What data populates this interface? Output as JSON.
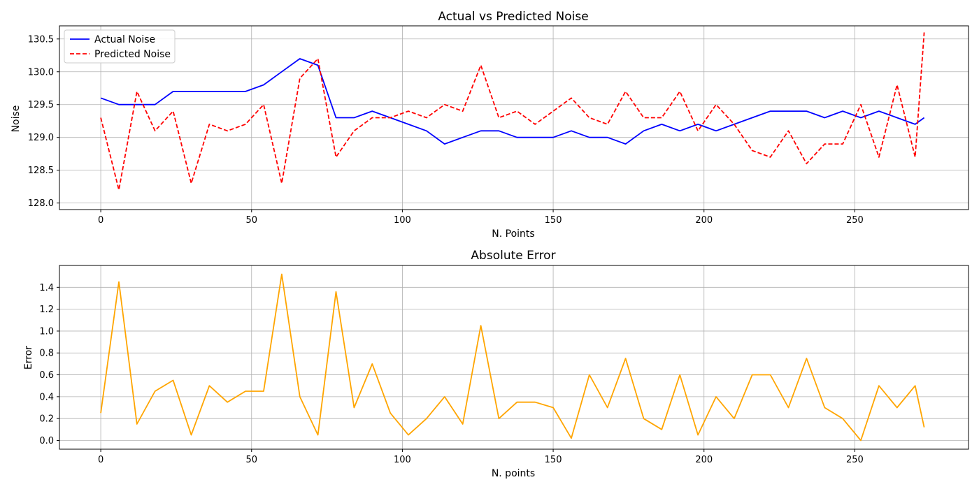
{
  "chart_data": [
    {
      "type": "line",
      "title": "Actual vs Predicted Noise",
      "xlabel": "N. Points",
      "ylabel": "Noise",
      "xlim": [
        -13.7,
        287.7
      ],
      "ylim": [
        127.9,
        130.7
      ],
      "xticks": [
        0,
        50,
        100,
        150,
        200,
        250
      ],
      "yticks": [
        128.0,
        128.5,
        129.0,
        129.5,
        130.0,
        130.5
      ],
      "xtick_labels": [
        "0",
        "50",
        "100",
        "150",
        "200",
        "250"
      ],
      "ytick_labels": [
        "128.0",
        "128.5",
        "129.0",
        "129.5",
        "130.0",
        "130.5"
      ],
      "grid": true,
      "legend_position": "top-left",
      "x": [
        0,
        6,
        12,
        18,
        24,
        30,
        36,
        42,
        48,
        54,
        60,
        66,
        72,
        78,
        84,
        90,
        96,
        102,
        108,
        114,
        120,
        126,
        132,
        138,
        144,
        150,
        156,
        162,
        168,
        174,
        180,
        186,
        192,
        198,
        204,
        210,
        216,
        222,
        228,
        234,
        240,
        246,
        252,
        258,
        264,
        270,
        273
      ],
      "series": [
        {
          "name": "Actual Noise",
          "color": "#0000ff",
          "style": "solid",
          "values": [
            129.6,
            129.5,
            129.5,
            129.5,
            129.7,
            129.7,
            129.7,
            129.7,
            129.7,
            129.8,
            130.0,
            130.2,
            130.1,
            129.3,
            129.3,
            129.4,
            129.3,
            129.2,
            129.1,
            128.9,
            129.0,
            129.1,
            129.1,
            129.0,
            129.0,
            129.0,
            129.1,
            129.0,
            129.0,
            128.9,
            129.1,
            129.2,
            129.1,
            129.2,
            129.1,
            129.2,
            129.3,
            129.4,
            129.4,
            129.4,
            129.3,
            129.4,
            129.3,
            129.4,
            129.3,
            129.2,
            129.3
          ]
        },
        {
          "name": "Predicted Noise",
          "color": "#ff0000",
          "style": "dashed",
          "values": [
            129.3,
            128.2,
            129.7,
            129.1,
            129.4,
            128.3,
            129.2,
            129.1,
            129.2,
            129.5,
            128.3,
            129.9,
            130.2,
            128.7,
            129.1,
            129.3,
            129.3,
            129.4,
            129.3,
            129.5,
            129.4,
            130.1,
            129.3,
            129.4,
            129.2,
            129.4,
            129.6,
            129.3,
            129.2,
            129.7,
            129.3,
            129.3,
            129.7,
            129.1,
            129.5,
            129.2,
            128.8,
            128.7,
            129.1,
            128.6,
            128.9,
            128.9,
            129.5,
            128.7,
            129.8,
            128.7,
            130.6
          ]
        }
      ]
    },
    {
      "type": "line",
      "title": "Absolute Error",
      "xlabel": "N. points",
      "ylabel": "Error",
      "xlim": [
        -13.7,
        287.7
      ],
      "ylim": [
        -0.08,
        1.6
      ],
      "xticks": [
        0,
        50,
        100,
        150,
        200,
        250
      ],
      "yticks": [
        0.0,
        0.2,
        0.4,
        0.6,
        0.8,
        1.0,
        1.2,
        1.4
      ],
      "xtick_labels": [
        "0",
        "50",
        "100",
        "150",
        "200",
        "250"
      ],
      "ytick_labels": [
        "0.0",
        "0.2",
        "0.4",
        "0.6",
        "0.8",
        "1.0",
        "1.2",
        "1.4"
      ],
      "grid": true,
      "x": [
        0,
        6,
        12,
        18,
        24,
        30,
        36,
        42,
        48,
        54,
        60,
        66,
        72,
        78,
        84,
        90,
        96,
        102,
        108,
        114,
        120,
        126,
        132,
        138,
        144,
        150,
        156,
        162,
        168,
        174,
        180,
        186,
        192,
        198,
        204,
        210,
        216,
        222,
        228,
        234,
        240,
        246,
        252,
        258,
        264,
        270,
        273
      ],
      "series": [
        {
          "name": "",
          "color": "#ffa500",
          "style": "solid",
          "values": [
            0.25,
            1.45,
            0.15,
            0.45,
            0.55,
            0.05,
            0.5,
            0.35,
            0.45,
            0.45,
            1.52,
            0.4,
            0.05,
            1.36,
            0.3,
            0.7,
            0.25,
            0.05,
            0.2,
            0.4,
            0.15,
            1.05,
            0.2,
            0.35,
            0.35,
            0.3,
            0.02,
            0.6,
            0.3,
            0.75,
            0.2,
            0.1,
            0.6,
            0.05,
            0.4,
            0.2,
            0.6,
            0.6,
            0.3,
            0.75,
            0.3,
            0.2,
            0.0,
            0.5,
            0.3,
            0.5,
            0.12
          ]
        }
      ]
    }
  ]
}
